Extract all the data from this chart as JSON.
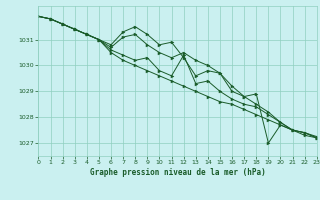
{
  "title": "Graphe pression niveau de la mer (hPa)",
  "bg_color": "#caf0f0",
  "grid_color": "#90d0c0",
  "line_color": "#1a5c2a",
  "x_min": 0,
  "x_max": 23,
  "y_min": 1026.5,
  "y_max": 1032.3,
  "y_ticks": [
    1027,
    1028,
    1029,
    1030,
    1031
  ],
  "x_ticks": [
    0,
    1,
    2,
    3,
    4,
    5,
    6,
    7,
    8,
    9,
    10,
    11,
    12,
    13,
    14,
    15,
    16,
    17,
    18,
    19,
    20,
    21,
    22,
    23
  ],
  "series": [
    [
      1031.9,
      1031.8,
      1031.6,
      1031.4,
      1031.2,
      1031.0,
      1030.8,
      1031.3,
      1031.5,
      1031.2,
      1030.8,
      1030.9,
      1030.3,
      1029.6,
      1029.8,
      1029.7,
      1029.0,
      1028.8,
      1028.9,
      1027.0,
      1027.7,
      1027.5,
      1027.4,
      1027.25
    ],
    [
      1031.9,
      1031.8,
      1031.6,
      1031.4,
      1031.2,
      1031.0,
      1030.7,
      1031.1,
      1031.2,
      1030.8,
      1030.5,
      1030.3,
      1030.5,
      1030.2,
      1030.0,
      1029.7,
      1029.2,
      1028.8,
      1028.5,
      1028.2,
      1027.8,
      1027.5,
      1027.4,
      1027.2
    ],
    [
      1031.9,
      1031.8,
      1031.6,
      1031.4,
      1031.2,
      1031.0,
      1030.6,
      1030.4,
      1030.2,
      1030.3,
      1029.8,
      1029.6,
      1030.4,
      1029.3,
      1029.4,
      1029.0,
      1028.7,
      1028.5,
      1028.4,
      1028.1,
      1027.8,
      1027.5,
      1027.4,
      1027.2
    ],
    [
      1031.9,
      1031.8,
      1031.6,
      1031.4,
      1031.2,
      1031.0,
      1030.5,
      1030.2,
      1030.0,
      1029.8,
      1029.6,
      1029.4,
      1029.2,
      1029.0,
      1028.8,
      1028.6,
      1028.5,
      1028.3,
      1028.1,
      1027.9,
      1027.7,
      1027.5,
      1027.3,
      1027.2
    ]
  ],
  "marker": ">"
}
